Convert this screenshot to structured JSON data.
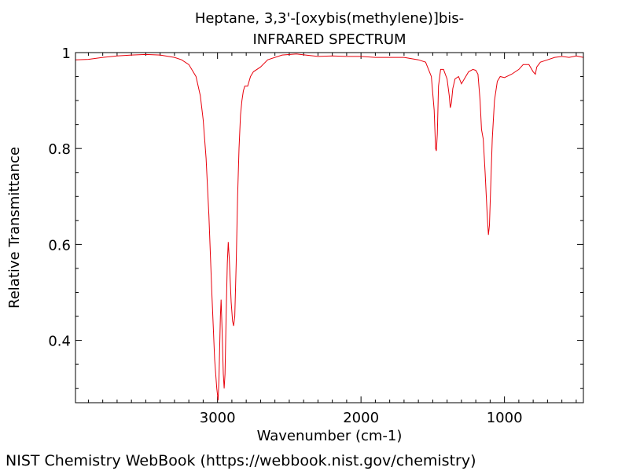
{
  "chart_data": {
    "type": "line",
    "title": "Heptane, 3,3'-[oxybis(methylene)]bis-",
    "subtitle": "INFRARED SPECTRUM",
    "xlabel": "Wavenumber (cm-1)",
    "ylabel": "Relative Transmittance",
    "xlim": [
      3990,
      450
    ],
    "ylim": [
      0.27,
      1.0
    ],
    "x_reversed": true,
    "grid": false,
    "x_ticks": [
      3000,
      2000,
      1000
    ],
    "x_tick_labels": [
      "3000",
      "2000",
      "1000"
    ],
    "y_ticks": [
      0.4,
      0.6,
      0.8,
      1.0
    ],
    "y_tick_labels": [
      "0.4",
      "0.6",
      "0.8",
      "1"
    ],
    "series": [
      {
        "color": "#e8000b",
        "points": [
          [
            3990,
            0.985
          ],
          [
            3900,
            0.986
          ],
          [
            3800,
            0.99
          ],
          [
            3700,
            0.993
          ],
          [
            3600,
            0.995
          ],
          [
            3500,
            0.996
          ],
          [
            3400,
            0.995
          ],
          [
            3300,
            0.99
          ],
          [
            3250,
            0.985
          ],
          [
            3200,
            0.975
          ],
          [
            3150,
            0.95
          ],
          [
            3120,
            0.91
          ],
          [
            3100,
            0.86
          ],
          [
            3080,
            0.78
          ],
          [
            3060,
            0.66
          ],
          [
            3040,
            0.5
          ],
          [
            3020,
            0.36
          ],
          [
            3005,
            0.3
          ],
          [
            2996,
            0.275
          ],
          [
            2990,
            0.32
          ],
          [
            2980,
            0.45
          ],
          [
            2975,
            0.485
          ],
          [
            2968,
            0.42
          ],
          [
            2960,
            0.33
          ],
          [
            2954,
            0.3
          ],
          [
            2948,
            0.33
          ],
          [
            2940,
            0.45
          ],
          [
            2932,
            0.56
          ],
          [
            2925,
            0.605
          ],
          [
            2918,
            0.57
          ],
          [
            2905,
            0.48
          ],
          [
            2895,
            0.44
          ],
          [
            2888,
            0.43
          ],
          [
            2880,
            0.45
          ],
          [
            2870,
            0.56
          ],
          [
            2860,
            0.7
          ],
          [
            2850,
            0.8
          ],
          [
            2840,
            0.87
          ],
          [
            2830,
            0.9
          ],
          [
            2820,
            0.92
          ],
          [
            2810,
            0.93
          ],
          [
            2790,
            0.93
          ],
          [
            2770,
            0.95
          ],
          [
            2750,
            0.96
          ],
          [
            2700,
            0.97
          ],
          [
            2650,
            0.985
          ],
          [
            2550,
            0.995
          ],
          [
            2450,
            0.997
          ],
          [
            2300,
            0.992
          ],
          [
            2200,
            0.993
          ],
          [
            2100,
            0.992
          ],
          [
            2000,
            0.992
          ],
          [
            1900,
            0.99
          ],
          [
            1800,
            0.99
          ],
          [
            1700,
            0.99
          ],
          [
            1600,
            0.985
          ],
          [
            1550,
            0.98
          ],
          [
            1510,
            0.95
          ],
          [
            1490,
            0.88
          ],
          [
            1480,
            0.8
          ],
          [
            1475,
            0.795
          ],
          [
            1468,
            0.83
          ],
          [
            1460,
            0.93
          ],
          [
            1445,
            0.965
          ],
          [
            1425,
            0.965
          ],
          [
            1400,
            0.945
          ],
          [
            1385,
            0.91
          ],
          [
            1378,
            0.885
          ],
          [
            1370,
            0.895
          ],
          [
            1360,
            0.925
          ],
          [
            1345,
            0.945
          ],
          [
            1320,
            0.95
          ],
          [
            1300,
            0.935
          ],
          [
            1280,
            0.945
          ],
          [
            1250,
            0.96
          ],
          [
            1220,
            0.965
          ],
          [
            1200,
            0.963
          ],
          [
            1185,
            0.955
          ],
          [
            1170,
            0.9
          ],
          [
            1160,
            0.84
          ],
          [
            1148,
            0.82
          ],
          [
            1135,
            0.75
          ],
          [
            1120,
            0.66
          ],
          [
            1112,
            0.62
          ],
          [
            1105,
            0.64
          ],
          [
            1095,
            0.73
          ],
          [
            1085,
            0.82
          ],
          [
            1070,
            0.9
          ],
          [
            1050,
            0.94
          ],
          [
            1030,
            0.95
          ],
          [
            1000,
            0.948
          ],
          [
            950,
            0.955
          ],
          [
            900,
            0.965
          ],
          [
            870,
            0.975
          ],
          [
            830,
            0.975
          ],
          [
            800,
            0.96
          ],
          [
            785,
            0.955
          ],
          [
            775,
            0.97
          ],
          [
            750,
            0.98
          ],
          [
            700,
            0.985
          ],
          [
            650,
            0.99
          ],
          [
            600,
            0.992
          ],
          [
            550,
            0.99
          ],
          [
            500,
            0.993
          ],
          [
            450,
            0.99
          ]
        ]
      }
    ]
  },
  "footer": {
    "text": "NIST Chemistry WebBook (https://webbook.nist.gov/chemistry)"
  }
}
